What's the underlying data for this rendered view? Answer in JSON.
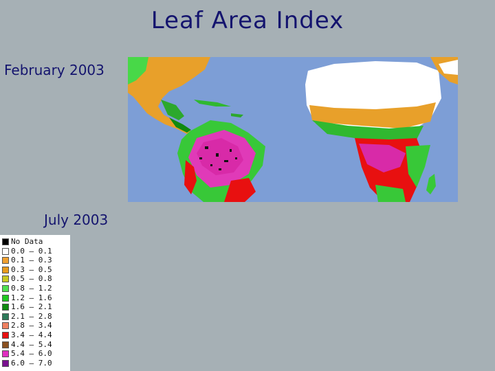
{
  "slide": {
    "title": "Leaf Area Index",
    "label_feb": "February 2003",
    "label_jul": "July 2003"
  },
  "legend": {
    "items": [
      {
        "label": "No Data",
        "color": "#000000"
      },
      {
        "label": "0.0 – 0.1",
        "color": "#ffffff"
      },
      {
        "label": "0.1 – 0.3",
        "color": "#f0a030"
      },
      {
        "label": "0.3 – 0.5",
        "color": "#e89a1c"
      },
      {
        "label": "0.5 – 0.8",
        "color": "#c8c820"
      },
      {
        "label": "0.8 – 1.2",
        "color": "#50e050"
      },
      {
        "label": "1.2 – 1.6",
        "color": "#20c820"
      },
      {
        "label": "1.6 – 2.1",
        "color": "#108a10"
      },
      {
        "label": "2.1 – 2.8",
        "color": "#2e7a5a"
      },
      {
        "label": "2.8 – 3.4",
        "color": "#f08060"
      },
      {
        "label": "3.4 – 4.4",
        "color": "#e81010"
      },
      {
        "label": "4.4 – 5.4",
        "color": "#8a5020"
      },
      {
        "label": "5.4 – 6.0",
        "color": "#e030c0"
      },
      {
        "label": "6.0 – 7.0",
        "color": "#7a1090"
      }
    ]
  }
}
